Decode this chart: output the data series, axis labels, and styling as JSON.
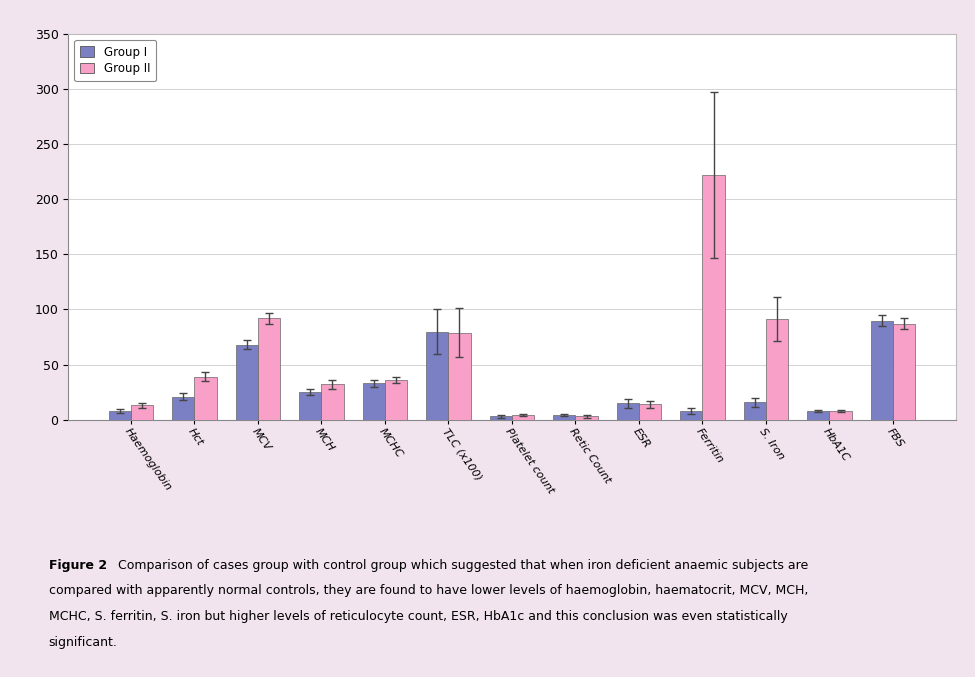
{
  "categories": [
    "Haemoglobin",
    "Hct",
    "MCV",
    "MCH",
    "MCHC",
    "TLC (x100)",
    "Platelet count",
    "Retic Count",
    "ESR",
    "Ferritin",
    "S. Iron",
    "HbA1C",
    "FBS"
  ],
  "group1_values": [
    8,
    21,
    68,
    25,
    33,
    80,
    3,
    4,
    15,
    8,
    16,
    8,
    90
  ],
  "group2_values": [
    13,
    39,
    92,
    32,
    36,
    79,
    4,
    3,
    14,
    222,
    91,
    8,
    87
  ],
  "group1_errors": [
    2,
    3,
    4,
    3,
    3,
    20,
    1,
    1,
    4,
    3,
    4,
    1,
    5
  ],
  "group2_errors": [
    2,
    4,
    5,
    4,
    3,
    22,
    1,
    1,
    3,
    75,
    20,
    1,
    5
  ],
  "group1_color": "#7b7fc4",
  "group2_color": "#f9a0c8",
  "bar_width": 0.35,
  "ylim": [
    0,
    350
  ],
  "yticks": [
    0,
    50,
    100,
    150,
    200,
    250,
    300,
    350
  ],
  "legend_labels": [
    "Group I",
    "Group II"
  ],
  "caption_bold": "Figure 2",
  "caption_rest": " Comparison of cases group with control group which suggested that when iron deficient anaemic subjects are compared with apparently normal controls, they are found to have lower levels of haemoglobin, haematocrit, MCV, MCH, MCHC, S. ferritin, S. iron but higher levels of reticulocyte count, ESR, HbA1c and this conclusion was even statistically significant.",
  "background_color": "#f2e4ee",
  "plot_bg_color": "#ffffff",
  "grid_color": "#cccccc",
  "errorbar_color": "#444444"
}
